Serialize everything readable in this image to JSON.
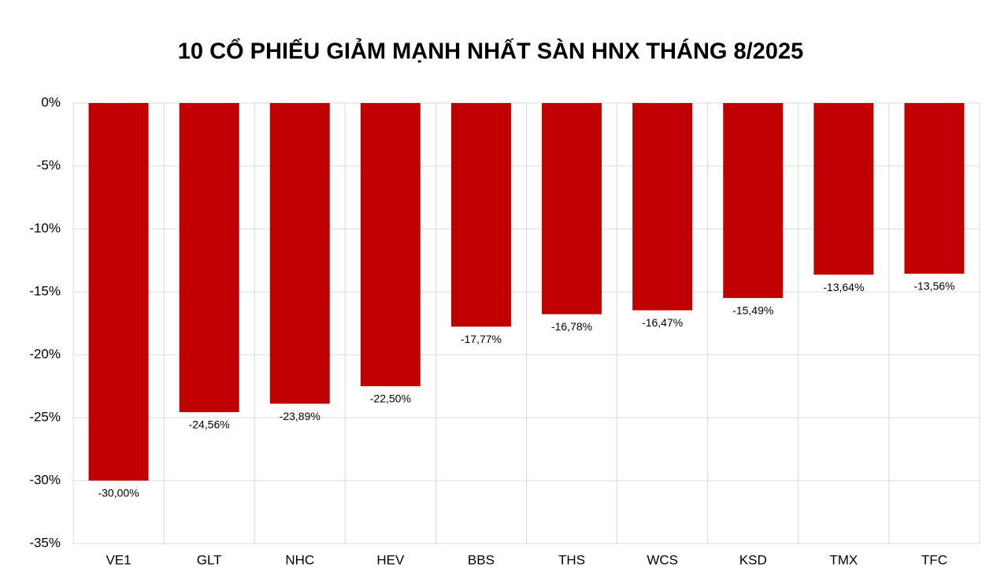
{
  "chart_data": {
    "type": "bar",
    "title": "10 CỔ PHIẾU GIẢM MẠNH NHẤT SÀN HNX THÁNG 8/2025",
    "categories": [
      "VE1",
      "GLT",
      "NHC",
      "HEV",
      "BBS",
      "THS",
      "WCS",
      "KSD",
      "TMX",
      "TFC"
    ],
    "values": [
      -30.0,
      -24.56,
      -23.89,
      -22.5,
      -17.77,
      -16.78,
      -16.47,
      -15.49,
      -13.64,
      -13.56
    ],
    "value_labels": [
      "-30,00%",
      "-24,56%",
      "-23,89%",
      "-22,50%",
      "-17,77%",
      "-16,78%",
      "-16,47%",
      "-15,49%",
      "-13,64%",
      "-13,56%"
    ],
    "color": "#c00000",
    "ylim": [
      -35,
      0
    ],
    "yticks": [
      {
        "value": 0,
        "label": "0%"
      },
      {
        "value": -5,
        "label": "-5%"
      },
      {
        "value": -10,
        "label": "-10%"
      },
      {
        "value": -15,
        "label": "-15%"
      },
      {
        "value": -20,
        "label": "-20%"
      },
      {
        "value": -25,
        "label": "-25%"
      },
      {
        "value": -30,
        "label": "-30%"
      },
      {
        "value": -35,
        "label": "-35%"
      }
    ],
    "grid": true
  }
}
